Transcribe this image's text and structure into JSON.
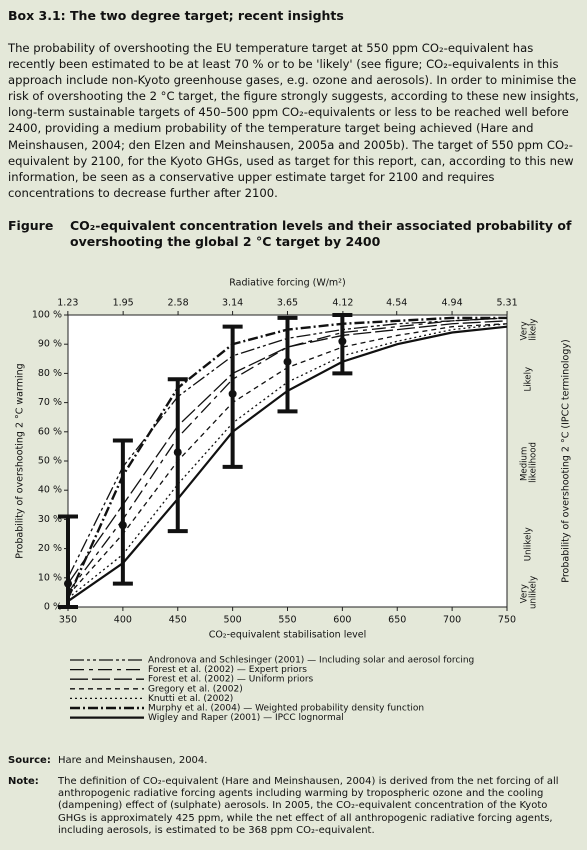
{
  "header": {
    "title": "Box 3.1: The two degree target; recent insights"
  },
  "paragraph": "The probability of overshooting the EU temperature target at 550 ppm CO₂-equivalent has recently been estimated to be at least 70 % or to be 'likely' (see figure; CO₂-equivalents in this approach include non-Kyoto greenhouse gases, e.g. ozone and aerosols). In order to minimise the risk of overshooting the 2 °C target, the figure strongly suggests, according to these new insights, long-term sustainable targets of 450–500 ppm CO₂-equivalents or less to be reached well before 2400, providing a medium probability of the temperature target being achieved (Hare and Meinshausen, 2004; den Elzen and Meinshausen, 2005a and 2005b). The target of 550 ppm CO₂-equivalent by 2100, for the Kyoto GHGs, used as target for this report, can, according to this new information, be seen as a conservative upper estimate target for 2100 and requires concentrations to decrease further after 2100.",
  "figure": {
    "label": "Figure",
    "caption": "CO₂-equivalent concentration levels and their associated probability of overshooting the global 2 °C target by 2400"
  },
  "chart_data": {
    "type": "line",
    "x_label": "CO₂-equivalent stabilisation level",
    "y_label": "Probability of overshooting 2 °C warming",
    "x2_label": "Radiative forcing (W/m²)",
    "y2_label": "Probability of overshooting 2 °C (IPCC terminology)",
    "xlim": [
      350,
      750
    ],
    "xticks": [
      350,
      400,
      450,
      500,
      550,
      600,
      650,
      700,
      750
    ],
    "x2ticks": [
      1.23,
      1.95,
      2.58,
      3.14,
      3.65,
      4.12,
      4.54,
      4.94,
      5.31
    ],
    "ylim": [
      0,
      100
    ],
    "yticks": [
      {
        "value": 0,
        "label": "0 %"
      },
      {
        "value": 10,
        "label": "10 %"
      },
      {
        "value": 20,
        "label": "20 %"
      },
      {
        "value": 30,
        "label": "30 %"
      },
      {
        "value": 40,
        "label": "40 %"
      },
      {
        "value": 50,
        "label": "50 %"
      },
      {
        "value": 60,
        "label": "60 %"
      },
      {
        "value": 70,
        "label": "70 %"
      },
      {
        "value": 80,
        "label": "80 %"
      },
      {
        "value": 90,
        "label": "90 %"
      },
      {
        "value": 100,
        "label": "100 %"
      }
    ],
    "likelihood_bands": [
      {
        "from": 0,
        "to": 10,
        "color": "#5d5a2e",
        "label": "Very unlikely"
      },
      {
        "from": 10,
        "to": 33,
        "color": "#a7a47a",
        "label": "Unlikely"
      },
      {
        "from": 33,
        "to": 66,
        "color": "#bcd44a",
        "label": "Medium likelihood"
      },
      {
        "from": 66,
        "to": 90,
        "color": "#c9a8c6",
        "label": "Likely"
      },
      {
        "from": 90,
        "to": 100,
        "color": "#8a4b88",
        "label": "Very likely"
      }
    ],
    "x": [
      350,
      400,
      450,
      500,
      550,
      600,
      650,
      700,
      750
    ],
    "series": [
      {
        "name": "Andronova and Schlesinger (2001) — Including solar and aerosol forcing",
        "color": "#111111",
        "dash": "14 3 3 3 3 3",
        "width": 1.3,
        "values": [
          10,
          48,
          72,
          86,
          92,
          95,
          97,
          98,
          99
        ]
      },
      {
        "name": "Forest et al. (2002) — Expert priors",
        "color": "#111111",
        "dash": "14 5 4 5",
        "width": 1.3,
        "values": [
          5,
          30,
          58,
          78,
          89,
          94,
          96,
          98,
          99
        ]
      },
      {
        "name": "Forest et al. (2002) — Uniform priors",
        "color": "#111111",
        "dash": "18 4",
        "width": 1.3,
        "values": [
          8,
          35,
          62,
          80,
          89,
          93,
          95,
          97,
          98
        ]
      },
      {
        "name": "Gregory et al. (2002)",
        "color": "#111111",
        "dash": "5 4",
        "width": 1.3,
        "values": [
          4,
          25,
          50,
          70,
          82,
          89,
          93,
          96,
          97
        ]
      },
      {
        "name": "Knutti et al. (2002)",
        "color": "#111111",
        "dash": "2 3",
        "width": 1.3,
        "values": [
          3,
          18,
          42,
          63,
          77,
          86,
          91,
          95,
          97
        ]
      },
      {
        "name": "Murphy et al. (2004) — Weighted probability density function",
        "color": "#111111",
        "dash": "10 3 2 3",
        "width": 2.4,
        "values": [
          3,
          45,
          75,
          90,
          95,
          97,
          98,
          99,
          99
        ]
      },
      {
        "name": "Wigley and Raper (2001) — IPCC lognormal",
        "color": "#111111",
        "dash": "none",
        "width": 2.2,
        "values": [
          2,
          15,
          37,
          60,
          74,
          84,
          90,
          94,
          96
        ]
      }
    ],
    "ranges": {
      "x": [
        350,
        400,
        450,
        500,
        550,
        600
      ],
      "low": [
        0,
        8,
        26,
        48,
        67,
        80
      ],
      "mid": [
        8,
        28,
        53,
        73,
        84,
        91
      ],
      "high": [
        31,
        57,
        78,
        96,
        99,
        100
      ]
    }
  },
  "source": {
    "label": "Source:",
    "text": "Hare and Meinshausen, 2004."
  },
  "note": {
    "label": "Note:",
    "text": "The definition of CO₂-equivalent (Hare and Meinshausen, 2004) is derived from the net forcing of all anthropogenic radiative forcing agents including warming by tropospheric ozone and the cooling (dampening) effect of (sulphate) aerosols. In 2005, the CO₂-equivalent concentration of the Kyoto GHGs is approximately 425 ppm, while the net effect of all anthropogenic radiative forcing agents, including aerosols, is estimated to be 368 ppm CO₂-equivalent."
  }
}
